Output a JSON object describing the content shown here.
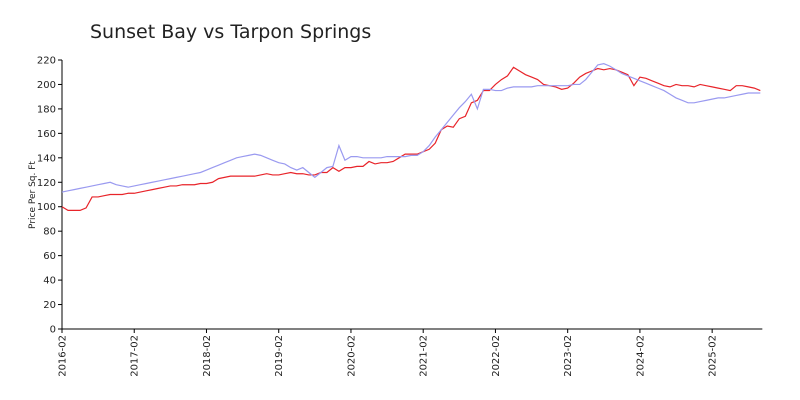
{
  "chart_data": {
    "type": "line",
    "title": "Sunset Bay vs Tarpon Springs",
    "y_label": "Price Per Sq. Ft",
    "x": [
      "2016-02",
      "2016-03",
      "2016-04",
      "2016-05",
      "2016-06",
      "2016-07",
      "2016-08",
      "2016-09",
      "2016-10",
      "2016-11",
      "2016-12",
      "2017-01",
      "2017-02",
      "2017-03",
      "2017-04",
      "2017-05",
      "2017-06",
      "2017-07",
      "2017-08",
      "2017-09",
      "2017-10",
      "2017-11",
      "2017-12",
      "2018-01",
      "2018-02",
      "2018-03",
      "2018-04",
      "2018-05",
      "2018-06",
      "2018-07",
      "2018-08",
      "2018-09",
      "2018-10",
      "2018-11",
      "2018-12",
      "2019-01",
      "2019-02",
      "2019-03",
      "2019-04",
      "2019-05",
      "2019-06",
      "2019-07",
      "2019-08",
      "2019-09",
      "2019-10",
      "2019-11",
      "2019-12",
      "2020-01",
      "2020-02",
      "2020-03",
      "2020-04",
      "2020-05",
      "2020-06",
      "2020-07",
      "2020-08",
      "2020-09",
      "2020-10",
      "2020-11",
      "2020-12",
      "2021-01",
      "2021-02",
      "2021-03",
      "2021-04",
      "2021-05",
      "2021-06",
      "2021-07",
      "2021-08",
      "2021-09",
      "2021-10",
      "2021-11",
      "2021-12",
      "2022-01",
      "2022-02",
      "2022-03",
      "2022-04",
      "2022-05",
      "2022-06",
      "2022-07",
      "2022-08",
      "2022-09",
      "2022-10",
      "2022-11",
      "2022-12",
      "2023-01",
      "2023-02",
      "2023-03",
      "2023-04",
      "2023-05",
      "2023-06",
      "2023-07",
      "2023-08",
      "2023-09",
      "2023-10",
      "2023-11",
      "2023-12",
      "2024-01",
      "2024-02",
      "2024-03",
      "2024-04",
      "2024-05",
      "2024-06",
      "2024-07",
      "2024-08",
      "2024-09",
      "2024-10",
      "2024-11",
      "2024-12",
      "2025-01",
      "2025-02",
      "2025-03",
      "2025-04",
      "2025-05",
      "2025-06",
      "2025-07",
      "2025-08",
      "2025-09",
      "2025-10"
    ],
    "xticks": [
      "2016-02",
      "2017-02",
      "2018-02",
      "2019-02",
      "2020-02",
      "2021-02",
      "2022-02",
      "2023-02",
      "2024-02",
      "2025-02"
    ],
    "ylim": [
      0,
      220
    ],
    "yticks": [
      0,
      20,
      40,
      60,
      80,
      100,
      120,
      140,
      160,
      180,
      200,
      220
    ],
    "series": [
      {
        "color": "#e8242a",
        "values": [
          100,
          97,
          97,
          97,
          99,
          108,
          108,
          109,
          110,
          110,
          110,
          111,
          111,
          112,
          113,
          114,
          115,
          116,
          117,
          117,
          118,
          118,
          118,
          119,
          119,
          120,
          123,
          124,
          125,
          125,
          125,
          125,
          125,
          126,
          127,
          126,
          126,
          127,
          128,
          127,
          127,
          126,
          126,
          128,
          128,
          132,
          129,
          132,
          132,
          133,
          133,
          137,
          135,
          136,
          136,
          137,
          140,
          143,
          143,
          143,
          145,
          147,
          152,
          163,
          166,
          165,
          172,
          174,
          185,
          187,
          195,
          195,
          200,
          204,
          207,
          214,
          211,
          208,
          206,
          204,
          200,
          199,
          198,
          196,
          197,
          201,
          206,
          209,
          211,
          213,
          212,
          213,
          212,
          210,
          208,
          199,
          206,
          205,
          203,
          201,
          199,
          198,
          200,
          199,
          199,
          198,
          200,
          199,
          198,
          197,
          196,
          195,
          199,
          199,
          198,
          197,
          195
        ]
      },
      {
        "color": "#9a9af0",
        "values": [
          112,
          113,
          114,
          115,
          116,
          117,
          118,
          119,
          120,
          118,
          117,
          116,
          117,
          118,
          119,
          120,
          121,
          122,
          123,
          124,
          125,
          126,
          127,
          128,
          130,
          132,
          134,
          136,
          138,
          140,
          141,
          142,
          143,
          142,
          140,
          138,
          136,
          135,
          132,
          130,
          132,
          128,
          124,
          128,
          132,
          133,
          150,
          138,
          141,
          141,
          140,
          140,
          140,
          140,
          141,
          141,
          141,
          141,
          142,
          142,
          145,
          150,
          157,
          163,
          169,
          175,
          181,
          186,
          192,
          180,
          196,
          196,
          195,
          195,
          197,
          198,
          198,
          198,
          198,
          199,
          199,
          199,
          199,
          199,
          199,
          200,
          200,
          204,
          210,
          216,
          217,
          215,
          212,
          209,
          207,
          205,
          203,
          201,
          199,
          197,
          195,
          192,
          189,
          187,
          185,
          185,
          186,
          187,
          188,
          189,
          189,
          190,
          191,
          192,
          193,
          193,
          193
        ]
      }
    ]
  }
}
